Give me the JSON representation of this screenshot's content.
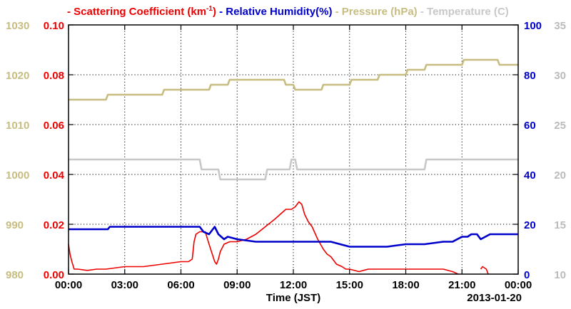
{
  "chart_data": {
    "type": "line",
    "xlabel": "Time (JST)",
    "date_label": "2013-01-20",
    "x_ticks": [
      "00:00",
      "03:00",
      "06:00",
      "09:00",
      "12:00",
      "15:00",
      "18:00",
      "21:00",
      "00:00"
    ],
    "x_range_hours": [
      0,
      24
    ],
    "grid": true,
    "legend_placement": "top",
    "axes": {
      "pressure": {
        "label": "Pressure (hPa)",
        "side": "left-outer",
        "range": [
          980,
          1030
        ],
        "ticks": [
          "980",
          "990",
          "1000",
          "1010",
          "1020",
          "1030"
        ],
        "color": "#c8bd80"
      },
      "scattering": {
        "label": "Scattering Coefficient (km-1)",
        "side": "left-inner",
        "range": [
          0,
          0.1
        ],
        "ticks": [
          "0.00",
          "0.02",
          "0.04",
          "0.06",
          "0.08",
          "0.10"
        ],
        "color": "#ee0000"
      },
      "humidity": {
        "label": "Relative Humidity(%)",
        "side": "right-inner",
        "range": [
          0,
          100
        ],
        "ticks": [
          "0",
          "20",
          "40",
          "60",
          "80",
          "100"
        ],
        "color": "#0000cc"
      },
      "temperature": {
        "label": "Temperature (C)",
        "side": "right-outer",
        "range": [
          10,
          35
        ],
        "ticks": [
          "10",
          "15",
          "20",
          "25",
          "30",
          "35"
        ],
        "color": "#bbbbbb"
      }
    },
    "legend": [
      {
        "key": "scattering",
        "prefix": "Scattering Coefficient (km",
        "sup": "-1",
        "suffix": ")",
        "color": "#ee0000"
      },
      {
        "key": "humidity",
        "prefix": "Relative Humidity(%)",
        "sup": "",
        "suffix": "",
        "color": "#0000cc"
      },
      {
        "key": "pressure",
        "prefix": "Pressure (hPa)",
        "sup": "",
        "suffix": "",
        "color": "#c8bd80"
      },
      {
        "key": "temperature",
        "prefix": "Temperature (",
        "sup": "",
        "suffix": "C)",
        "color": "#c8c8c8"
      }
    ],
    "series": [
      {
        "name": "Scattering Coefficient",
        "axis": "scattering",
        "color": "#ee0000",
        "x": [
          0.0,
          0.08,
          0.18,
          0.3,
          0.5,
          1.0,
          1.5,
          2.0,
          3.0,
          4.0,
          5.0,
          6.0,
          6.4,
          6.6,
          6.7,
          6.8,
          7.0,
          7.3,
          7.5,
          7.8,
          7.9,
          8.0,
          8.1,
          8.3,
          8.6,
          9.0,
          9.5,
          10.0,
          10.5,
          11.0,
          11.3,
          11.6,
          11.9,
          12.1,
          12.3,
          12.45,
          12.6,
          12.8,
          13.0,
          13.3,
          13.6,
          13.8,
          14.0,
          14.3,
          14.6,
          14.8,
          15.0,
          15.5,
          16.0,
          17.0,
          18.0,
          19.0,
          20.0,
          20.5,
          20.8
        ],
        "y": [
          0.012,
          0.008,
          0.005,
          0.002,
          0.002,
          0.0015,
          0.002,
          0.002,
          0.003,
          0.003,
          0.004,
          0.005,
          0.005,
          0.006,
          0.013,
          0.016,
          0.017,
          0.017,
          0.012,
          0.005,
          0.004,
          0.006,
          0.009,
          0.012,
          0.013,
          0.013,
          0.014,
          0.016,
          0.019,
          0.022,
          0.024,
          0.026,
          0.026,
          0.027,
          0.029,
          0.028,
          0.024,
          0.021,
          0.019,
          0.014,
          0.01,
          0.008,
          0.007,
          0.004,
          0.003,
          0.002,
          0.002,
          0.001,
          0.002,
          0.002,
          0.002,
          0.002,
          0.002,
          0.001,
          0.0
        ]
      },
      {
        "name": "Scattering Coefficient (late)",
        "axis": "scattering",
        "color": "#ee0000",
        "x": [
          22.0,
          22.1,
          22.3,
          22.4
        ],
        "y": [
          0.002,
          0.003,
          0.002,
          0.0
        ]
      },
      {
        "name": "Relative Humidity",
        "axis": "humidity",
        "color": "#0000cc",
        "x": [
          0.0,
          2.1,
          2.2,
          4.5,
          7.0,
          7.2,
          7.5,
          7.8,
          8.0,
          8.3,
          8.5,
          9.0,
          10.0,
          11.0,
          12.0,
          13.0,
          13.5,
          14.0,
          14.5,
          15.0,
          16.0,
          17.0,
          18.0,
          19.0,
          20.0,
          20.5,
          21.0,
          21.3,
          21.5,
          21.8,
          22.0,
          22.5,
          23.0,
          24.0
        ],
        "y": [
          18,
          18,
          19,
          19,
          19,
          17,
          16,
          19,
          16,
          14,
          15,
          14,
          13,
          13,
          13,
          13,
          13,
          13,
          12,
          11,
          11,
          11,
          12,
          12,
          13,
          13,
          15,
          15,
          16,
          16,
          14,
          16,
          16,
          16
        ]
      },
      {
        "name": "Pressure",
        "axis": "pressure",
        "color": "#c8bd80",
        "x": [
          0.0,
          2.0,
          2.1,
          5.0,
          5.1,
          7.5,
          7.6,
          8.5,
          8.6,
          11.5,
          11.6,
          12.0,
          12.1,
          13.5,
          13.6,
          15.0,
          15.1,
          16.5,
          16.6,
          18.0,
          18.1,
          19.0,
          19.1,
          20.0,
          20.1,
          21.0,
          21.1,
          22.5,
          22.6,
          22.9,
          23.0,
          24.0
        ],
        "y": [
          1015,
          1015,
          1016,
          1016,
          1017,
          1017,
          1018,
          1018,
          1019,
          1019,
          1018,
          1018,
          1017,
          1017,
          1018,
          1018,
          1019,
          1019,
          1020,
          1020,
          1021,
          1021,
          1022,
          1022,
          1022,
          1022,
          1023,
          1023,
          1023,
          1023,
          1022,
          1022
        ]
      },
      {
        "name": "Temperature",
        "axis": "temperature",
        "color": "#c8c8c8",
        "x": [
          0.0,
          7.0,
          7.1,
          8.0,
          8.1,
          10.5,
          10.6,
          11.8,
          11.9,
          12.1,
          12.2,
          13.5,
          13.6,
          19.0,
          19.1,
          19.4,
          19.5,
          24.0
        ],
        "y": [
          21.5,
          21.5,
          20.5,
          20.5,
          19.5,
          19.5,
          20.5,
          20.5,
          21.5,
          21.5,
          20.5,
          20.5,
          20.5,
          20.5,
          21.5,
          21.5,
          21.5,
          21.5
        ]
      }
    ]
  }
}
